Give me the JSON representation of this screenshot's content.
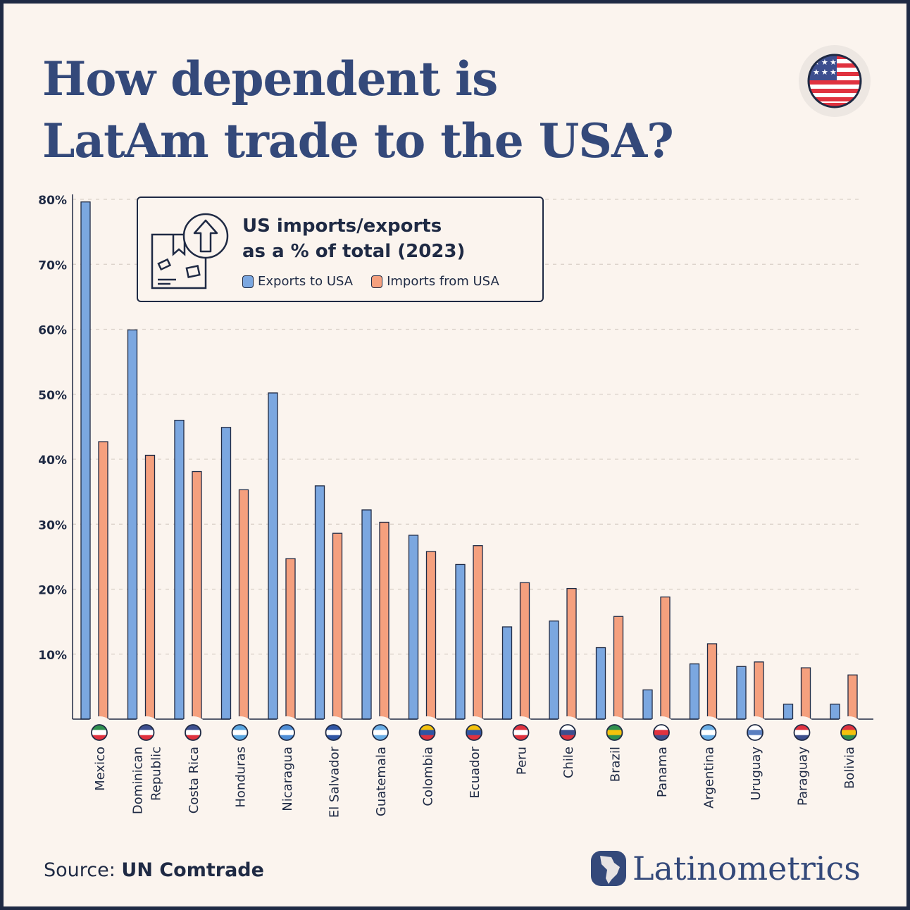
{
  "title_line1": "How dependent is",
  "title_line2": "LatAm trade to the USA?",
  "legend": {
    "title_line1": "US imports/exports",
    "title_line2": "as a % of total (2023)",
    "exports_label": "Exports to USA",
    "imports_label": "Imports from USA"
  },
  "source": {
    "prefix": "Source: ",
    "name": "UN Comtrade"
  },
  "brand": "Latinometrics",
  "colors": {
    "exports": "#7ba7e0",
    "imports": "#f5a07e",
    "outline": "#1f2a44",
    "title": "#34497a",
    "background": "#fbf4ee"
  },
  "chart_data": {
    "type": "bar",
    "unit": "%",
    "ylim": [
      0,
      80
    ],
    "yticks": [
      "10%",
      "20%",
      "30%",
      "40%",
      "50%",
      "60%",
      "70%",
      "80%"
    ],
    "grid": true,
    "legend_position": "top-left",
    "categories": [
      [
        "Mexico"
      ],
      [
        "Dominican",
        "Republic"
      ],
      [
        "Costa Rica"
      ],
      [
        "Honduras"
      ],
      [
        "Nicaragua"
      ],
      [
        "El Salvador"
      ],
      [
        "Guatemala"
      ],
      [
        "Colombia"
      ],
      [
        "Ecuador"
      ],
      [
        "Peru"
      ],
      [
        "Chile"
      ],
      [
        "Brazil"
      ],
      [
        "Panama"
      ],
      [
        "Argentina"
      ],
      [
        "Uruguay"
      ],
      [
        "Paraguay"
      ],
      [
        "Bolivia"
      ]
    ],
    "series": [
      {
        "name": "Exports to USA",
        "values": [
          79.6,
          59.9,
          46.0,
          44.9,
          50.2,
          35.9,
          32.2,
          28.3,
          23.8,
          14.2,
          15.1,
          11.0,
          4.5,
          8.5,
          8.1,
          2.3,
          2.3
        ]
      },
      {
        "name": "Imports from USA",
        "values": [
          42.7,
          40.6,
          38.1,
          35.3,
          24.7,
          28.6,
          30.3,
          25.8,
          26.7,
          21.0,
          20.1,
          15.8,
          18.8,
          11.6,
          8.8,
          7.9,
          6.8
        ]
      }
    ]
  }
}
